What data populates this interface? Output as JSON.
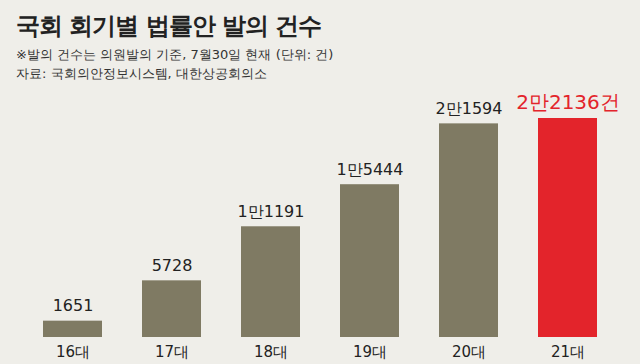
{
  "chart_data": {
    "type": "bar",
    "title": "국회 회기별 법률안 발의 건수",
    "subtitle": "※발의 건수는 의원발의 기준, 7월30일 현재 (단위: 건)",
    "source": "자료: 국회의안정보시스템, 대한상공회의소",
    "categories": [
      "16대",
      "17대",
      "18대",
      "19대",
      "20대",
      "21대"
    ],
    "values": [
      1651,
      5728,
      11191,
      15444,
      21594,
      22136
    ],
    "value_labels": [
      "1651",
      "5728",
      "1만1191",
      "1만5444",
      "2만1594",
      "2만2136건"
    ],
    "colors": [
      "#7f7a63",
      "#7f7a63",
      "#7f7a63",
      "#7f7a63",
      "#7f7a63",
      "#e3242b"
    ],
    "ylim": [
      0,
      22136
    ],
    "data_labels": true,
    "tick_labels": "x"
  }
}
